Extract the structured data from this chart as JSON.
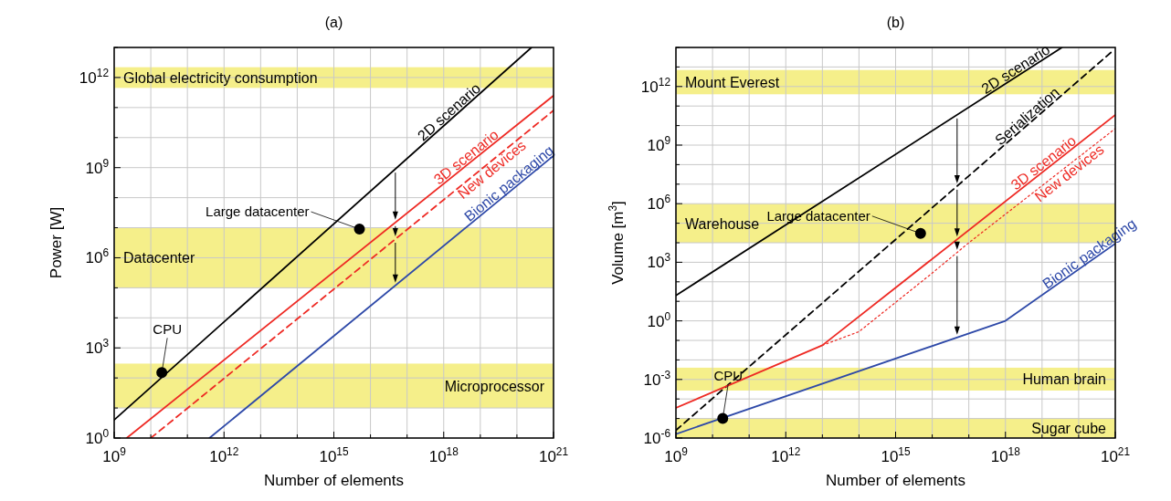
{
  "chart_data": [
    {
      "type": "line",
      "title": "(a)",
      "xlabel": "Number of elements",
      "ylabel": "Power [W]",
      "log": "xy",
      "grid": true,
      "xlim": [
        1000000000.0,
        1e+21
      ],
      "ylim": [
        1,
        10000000000000.0
      ],
      "xticks": [
        {
          "value": 1000000000.0,
          "label": "10$^{9}$"
        },
        {
          "value": 10000000000.0,
          "label": null
        },
        {
          "value": 100000000000.0,
          "label": null
        },
        {
          "value": 1000000000000.0,
          "label": "10$^{12}$"
        },
        {
          "value": 10000000000000.0,
          "label": null
        },
        {
          "value": 100000000000000.0,
          "label": null
        },
        {
          "value": 1000000000000000.0,
          "label": "10$^{15}$"
        },
        {
          "value": 1e+16,
          "label": null
        },
        {
          "value": 1e+17,
          "label": null
        },
        {
          "value": 1e+18,
          "label": "10$^{18}$"
        },
        {
          "value": 1e+19,
          "label": null
        },
        {
          "value": 1e+20,
          "label": null
        },
        {
          "value": 1e+21,
          "label": "10$^{21}$"
        }
      ],
      "yticks": [
        {
          "value": 1,
          "label": "10$^{0}$"
        },
        {
          "value": 10,
          "label": null
        },
        {
          "value": 100,
          "label": null
        },
        {
          "value": 1000.0,
          "label": "10$^{3}$"
        },
        {
          "value": 10000.0,
          "label": null
        },
        {
          "value": 100000.0,
          "label": null
        },
        {
          "value": 1000000.0,
          "label": "10$^{6}$"
        },
        {
          "value": 10000000.0,
          "label": null
        },
        {
          "value": 100000000.0,
          "label": null
        },
        {
          "value": 1000000000.0,
          "label": "10$^{9}$"
        },
        {
          "value": 10000000000.0,
          "label": null
        },
        {
          "value": 100000000000.0,
          "label": null
        },
        {
          "value": 1000000000000.0,
          "label": "10$^{12}$"
        },
        {
          "value": 10000000000000.0,
          "label": null
        }
      ],
      "bands": [
        {
          "axis": "y",
          "from": 450000000000.0,
          "to": 2200000000000.0,
          "label": "Global electricity consumption",
          "color": "#f5ef8a"
        },
        {
          "axis": "y",
          "from": 100000.0,
          "to": 10000000.0,
          "label": "Datacenter",
          "color": "#f5ef8a"
        },
        {
          "axis": "y",
          "from": 10,
          "to": 300,
          "label": "Microprocessor",
          "color": "#f5ef8a"
        }
      ],
      "series": [
        {
          "name": "2D scenario",
          "color": "#000000",
          "line_style": "solid",
          "x": [
            1000000000.0,
            2.5e+20
          ],
          "values": [
            4,
            10000000000000.0
          ]
        },
        {
          "name": "3D scenario",
          "color": "#ee2a24",
          "line_style": "solid",
          "x": [
            2200000000.0,
            1e+21
          ],
          "values": [
            1,
            250000000000.0
          ]
        },
        {
          "name": "New devices",
          "color": "#ee2a24",
          "line_style": "dashed",
          "x": [
            10000000000.0,
            1e+21
          ],
          "values": [
            1,
            80000000000.0
          ]
        },
        {
          "name": "Bionic packaging",
          "color": "#2e49a8",
          "line_style": "solid",
          "x": [
            400000000000.0,
            1e+21
          ],
          "values": [
            1,
            2500000000.0
          ]
        },
        {
          "name": "CPU",
          "type": "scatter",
          "color": "#000000",
          "marker": "circle",
          "x": [
            20000000000.0
          ],
          "values": [
            150
          ]
        },
        {
          "name": "Large datacenter",
          "type": "scatter",
          "color": "#000000",
          "marker": "circle",
          "x": [
            5000000000000000.0
          ],
          "values": [
            9000000.0
          ]
        }
      ]
    },
    {
      "type": "line",
      "title": "(b)",
      "xlabel": "Number of elements",
      "ylabel": "Volume [m$^{3}$]",
      "log": "xy",
      "grid": true,
      "xlim": [
        1000000000.0,
        1e+21
      ],
      "ylim": [
        1e-06,
        100000000000000.0
      ],
      "xticks": [
        {
          "value": 1000000000.0,
          "label": "10$^{9}$"
        },
        {
          "value": 10000000000.0,
          "label": null
        },
        {
          "value": 100000000000.0,
          "label": null
        },
        {
          "value": 1000000000000.0,
          "label": "10$^{12}$"
        },
        {
          "value": 10000000000000.0,
          "label": null
        },
        {
          "value": 100000000000000.0,
          "label": null
        },
        {
          "value": 1000000000000000.0,
          "label": "10$^{15}$"
        },
        {
          "value": 1e+16,
          "label": null
        },
        {
          "value": 1e+17,
          "label": null
        },
        {
          "value": 1e+18,
          "label": "10$^{18}$"
        },
        {
          "value": 1e+19,
          "label": null
        },
        {
          "value": 1e+20,
          "label": null
        },
        {
          "value": 1e+21,
          "label": "10$^{21}$"
        }
      ],
      "yticks": [
        {
          "value": 1e-06,
          "label": "10$^{-6}$"
        },
        {
          "value": 1e-05,
          "label": null
        },
        {
          "value": 0.0001,
          "label": null
        },
        {
          "value": 0.001,
          "label": "10$^{-3}$"
        },
        {
          "value": 0.01,
          "label": null
        },
        {
          "value": 0.1,
          "label": null
        },
        {
          "value": 1,
          "label": "10$^{0}$"
        },
        {
          "value": 10,
          "label": null
        },
        {
          "value": 100,
          "label": null
        },
        {
          "value": 1000.0,
          "label": "10$^{3}$"
        },
        {
          "value": 10000.0,
          "label": null
        },
        {
          "value": 100000.0,
          "label": null
        },
        {
          "value": 1000000.0,
          "label": "10$^{6}$"
        },
        {
          "value": 10000000.0,
          "label": null
        },
        {
          "value": 100000000.0,
          "label": null
        },
        {
          "value": 1000000000.0,
          "label": "10$^{9}$"
        },
        {
          "value": 10000000000.0,
          "label": null
        },
        {
          "value": 100000000000.0,
          "label": null
        },
        {
          "value": 1000000000000.0,
          "label": "10$^{12}$"
        },
        {
          "value": 10000000000000.0,
          "label": null
        },
        {
          "value": 100000000000000.0,
          "label": null
        }
      ],
      "bands": [
        {
          "axis": "y",
          "from": 400000000000.0,
          "to": 7000000000000.0,
          "label": "Mount Everest",
          "color": "#f5ef8a"
        },
        {
          "axis": "y",
          "from": 10000.0,
          "to": 1000000.0,
          "label": "Warehouse",
          "color": "#f5ef8a"
        },
        {
          "axis": "y",
          "from": 0.00027,
          "to": 0.004,
          "label": "Human brain",
          "color": "#f5ef8a"
        },
        {
          "axis": "y",
          "from": 1e-06,
          "to": 1e-05,
          "label": "Sugar cube",
          "color": "#f5ef8a"
        }
      ],
      "series": [
        {
          "name": "2D scenario",
          "color": "#000000",
          "line_style": "solid",
          "x": [
            1000000000.0,
            3.5e+19
          ],
          "values": [
            20,
            100000000000000.0
          ]
        },
        {
          "name": "Serialization",
          "color": "#000000",
          "line_style": "dashed",
          "x": [
            1000000000.0,
            8e+20
          ],
          "values": [
            2.5e-06,
            60000000000000.0
          ]
        },
        {
          "name": "3D scenario",
          "color": "#ee2a24",
          "line_style": "solid",
          "x": [
            1000000000.0,
            10000000000000.0,
            1e+21
          ],
          "values": [
            3.5e-05,
            0.056,
            35000000000.0
          ]
        },
        {
          "name": "New devices",
          "color": "#ee2a24",
          "line_style": "dotted",
          "x": [
            10000000000000.0,
            100000000000000.0,
            1e+16,
            1e+17,
            1e+21
          ],
          "values": [
            0.056,
            0.28,
            280,
            10000.0,
            7000000000.0
          ]
        },
        {
          "name": "Bionic packaging",
          "color": "#2e49a8",
          "line_style": "solid",
          "x": [
            1000000000.0,
            1e+18,
            1e+21
          ],
          "values": [
            1.6e-06,
            1,
            9000.0
          ]
        },
        {
          "name": "CPU",
          "type": "scatter",
          "color": "#000000",
          "marker": "circle",
          "x": [
            19000000000.0
          ],
          "values": [
            1e-05
          ]
        },
        {
          "name": "Large datacenter",
          "type": "scatter",
          "color": "#000000",
          "marker": "circle",
          "x": [
            4800000000000000.0
          ],
          "values": [
            30000.0
          ]
        }
      ]
    }
  ]
}
